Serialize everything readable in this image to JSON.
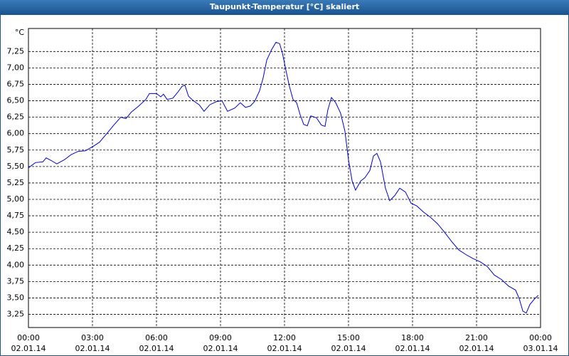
{
  "chart_data": {
    "type": "line",
    "title": "Taupunkt-Temperatur [°C] skaliert",
    "y_unit": "°C",
    "xlim": [
      0,
      24
    ],
    "ylim": [
      3.05,
      7.6
    ],
    "xticks": [
      {
        "value": 0,
        "label": "00:00"
      },
      {
        "value": 3,
        "label": "03:00"
      },
      {
        "value": 6,
        "label": "06:00"
      },
      {
        "value": 9,
        "label": "09:00"
      },
      {
        "value": 12,
        "label": "12:00"
      },
      {
        "value": 15,
        "label": "15:00"
      },
      {
        "value": 18,
        "label": "18:00"
      },
      {
        "value": 21,
        "label": "21:00"
      },
      {
        "value": 24,
        "label": "00:00"
      }
    ],
    "xtick_dates": [
      "02.01.14",
      "02.01.14",
      "02.01.14",
      "02.01.14",
      "02.01.14",
      "02.01.14",
      "02.01.14",
      "02.01.14",
      "03.01.14"
    ],
    "yticks": [
      {
        "value": 3.25,
        "label": "3,25"
      },
      {
        "value": 3.5,
        "label": "3,50"
      },
      {
        "value": 3.75,
        "label": "3,75"
      },
      {
        "value": 4,
        "label": "4,00"
      },
      {
        "value": 4.25,
        "label": "4,25"
      },
      {
        "value": 4.5,
        "label": "4,50"
      },
      {
        "value": 4.75,
        "label": "4,75"
      },
      {
        "value": 5,
        "label": "5,00"
      },
      {
        "value": 5.25,
        "label": "5,25"
      },
      {
        "value": 5.5,
        "label": "5,50"
      },
      {
        "value": 5.75,
        "label": "5,75"
      },
      {
        "value": 6,
        "label": "6,00"
      },
      {
        "value": 6.25,
        "label": "6,25"
      },
      {
        "value": 6.5,
        "label": "6,50"
      },
      {
        "value": 6.75,
        "label": "6,75"
      },
      {
        "value": 7,
        "label": "7,00"
      },
      {
        "value": 7.25,
        "label": "7,25"
      }
    ],
    "grid": true,
    "color": "#0000cc",
    "x": [
      0,
      0.33,
      0.67,
      0.83,
      1.07,
      1.33,
      1.67,
      2,
      2.33,
      2.67,
      3,
      3.33,
      3.67,
      4,
      4.33,
      4.57,
      4.83,
      5.17,
      5.5,
      5.67,
      6,
      6.2,
      6.33,
      6.5,
      6.77,
      7,
      7.2,
      7.33,
      7.5,
      7.73,
      8,
      8.23,
      8.5,
      8.83,
      9.07,
      9.33,
      9.67,
      9.93,
      10.17,
      10.4,
      10.6,
      10.83,
      11,
      11.17,
      11.4,
      11.6,
      11.77,
      11.9,
      12.07,
      12.23,
      12.4,
      12.57,
      12.73,
      12.9,
      13.07,
      13.23,
      13.5,
      13.73,
      13.9,
      14.03,
      14.2,
      14.4,
      14.63,
      14.83,
      15,
      15.17,
      15.33,
      15.57,
      15.77,
      16,
      16.17,
      16.33,
      16.5,
      16.73,
      16.93,
      17.17,
      17.4,
      17.67,
      17.93,
      18.2,
      18.5,
      18.83,
      19.17,
      19.5,
      19.83,
      20.17,
      20.5,
      20.83,
      21.17,
      21.5,
      21.83,
      22.17,
      22.5,
      22.83,
      23,
      23.17,
      23.33,
      23.5,
      23.73,
      23.9
    ],
    "values": [
      5.48,
      5.56,
      5.57,
      5.63,
      5.59,
      5.54,
      5.6,
      5.68,
      5.73,
      5.74,
      5.8,
      5.87,
      6,
      6.13,
      6.25,
      6.23,
      6.33,
      6.42,
      6.52,
      6.61,
      6.61,
      6.56,
      6.6,
      6.52,
      6.54,
      6.63,
      6.72,
      6.74,
      6.57,
      6.5,
      6.44,
      6.34,
      6.44,
      6.49,
      6.5,
      6.34,
      6.39,
      6.47,
      6.4,
      6.42,
      6.49,
      6.65,
      6.85,
      7.12,
      7.28,
      7.39,
      7.37,
      7.23,
      6.96,
      6.72,
      6.52,
      6.47,
      6.29,
      6.14,
      6.12,
      6.27,
      6.24,
      6.13,
      6.11,
      6.36,
      6.55,
      6.47,
      6.31,
      6.04,
      5.6,
      5.28,
      5.14,
      5.28,
      5.33,
      5.44,
      5.66,
      5.7,
      5.57,
      5.17,
      4.98,
      5.06,
      5.17,
      5.11,
      4.94,
      4.9,
      4.81,
      4.73,
      4.63,
      4.5,
      4.36,
      4.23,
      4.16,
      4.1,
      4.05,
      3.98,
      3.85,
      3.78,
      3.68,
      3.62,
      3.49,
      3.3,
      3.27,
      3.4,
      3.49,
      3.54
    ]
  }
}
